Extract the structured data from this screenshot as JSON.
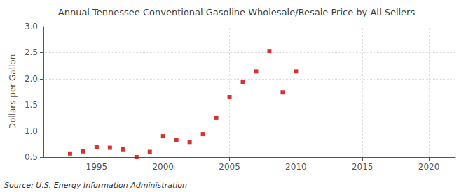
{
  "chart_data": {
    "type": "scatter",
    "title": "Annual Tennessee Conventional Gasoline Wholesale/Resale Price by All Sellers",
    "ylabel": "Dollars per Gallon",
    "annotations": [
      "Source: U.S. Energy Information Administration"
    ],
    "x": [
      1993,
      1994,
      1995,
      1996,
      1997,
      1998,
      1999,
      2000,
      2001,
      2002,
      2003,
      2004,
      2005,
      2006,
      2007,
      2008,
      2009,
      2010
    ],
    "values": [
      0.57,
      0.61,
      0.7,
      0.68,
      0.65,
      0.5,
      0.6,
      0.9,
      0.83,
      0.79,
      0.94,
      1.25,
      1.65,
      1.94,
      2.14,
      2.53,
      1.74,
      2.14
    ],
    "color": "#cc0000",
    "marker": "square",
    "xlim": [
      1991,
      2022
    ],
    "xticks": [
      1995,
      2000,
      2005,
      2010,
      2015,
      2020
    ],
    "ylim": [
      0.5,
      3.0
    ],
    "yticks": [
      0.5,
      {
        "value": 1.0,
        "label": "1.0"
      },
      1.5,
      {
        "value": 2.0,
        "label": "2.0"
      },
      2.5,
      {
        "value": 3.0,
        "label": "3.0"
      }
    ],
    "grid": true
  }
}
